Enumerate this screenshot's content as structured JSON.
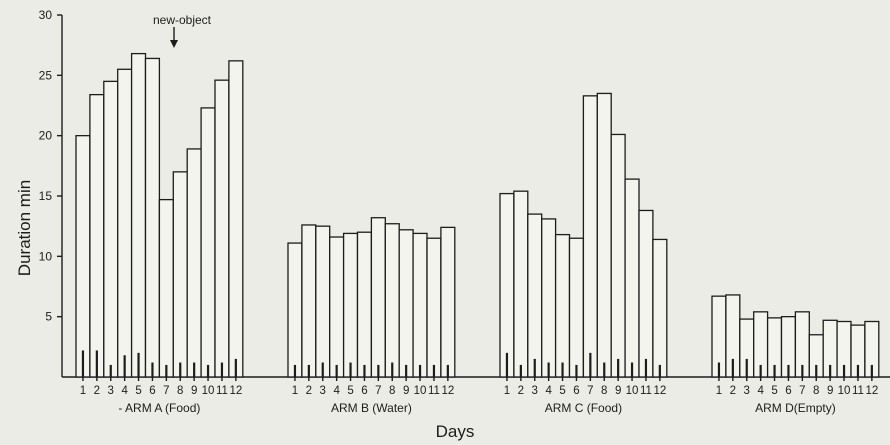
{
  "chart_data": {
    "type": "bar",
    "title": "",
    "xlabel": "Days",
    "ylabel": "Duration  min",
    "ylim": [
      0,
      30
    ],
    "yticks": [
      "5",
      "10",
      "15",
      "20",
      "25",
      "30"
    ],
    "grid": false,
    "annotation": "new-object",
    "categories": [
      "1",
      "2",
      "3",
      "4",
      "5",
      "6",
      "7",
      "8",
      "9",
      "10",
      "11",
      "12"
    ],
    "groups": [
      {
        "label": "- ARM  A (Food)",
        "values": [
          20.0,
          23.4,
          24.5,
          25.5,
          26.8,
          26.4,
          14.7,
          17.0,
          18.9,
          22.3,
          24.6,
          26.2
        ],
        "error": [
          2.2,
          2.2,
          1.0,
          1.8,
          2.0,
          1.2,
          1.0,
          1.2,
          1.2,
          1.0,
          1.2,
          1.5
        ]
      },
      {
        "label": "ARM  B (Water)",
        "values": [
          11.1,
          12.6,
          12.5,
          11.6,
          11.9,
          12.0,
          13.2,
          12.7,
          12.2,
          11.9,
          11.5,
          12.4
        ],
        "error": [
          1.0,
          1.0,
          1.2,
          1.0,
          1.2,
          1.0,
          1.0,
          1.2,
          1.0,
          1.0,
          1.0,
          1.0
        ]
      },
      {
        "label": "ARM  C (Food)",
        "values": [
          15.2,
          15.4,
          13.5,
          13.1,
          11.8,
          11.5,
          23.3,
          23.5,
          20.1,
          16.4,
          13.8,
          11.4
        ],
        "error": [
          2.0,
          1.0,
          1.5,
          1.2,
          1.2,
          1.0,
          2.0,
          1.2,
          1.5,
          1.2,
          1.5,
          1.0
        ]
      },
      {
        "label": "ARM  D(Empty)",
        "values": [
          6.7,
          6.8,
          4.8,
          5.4,
          4.9,
          5.0,
          5.4,
          3.5,
          4.7,
          4.6,
          4.3,
          4.6
        ],
        "error": [
          1.2,
          1.5,
          1.5,
          1.0,
          1.0,
          1.0,
          1.0,
          1.0,
          1.0,
          1.0,
          1.0,
          1.0
        ]
      }
    ]
  }
}
